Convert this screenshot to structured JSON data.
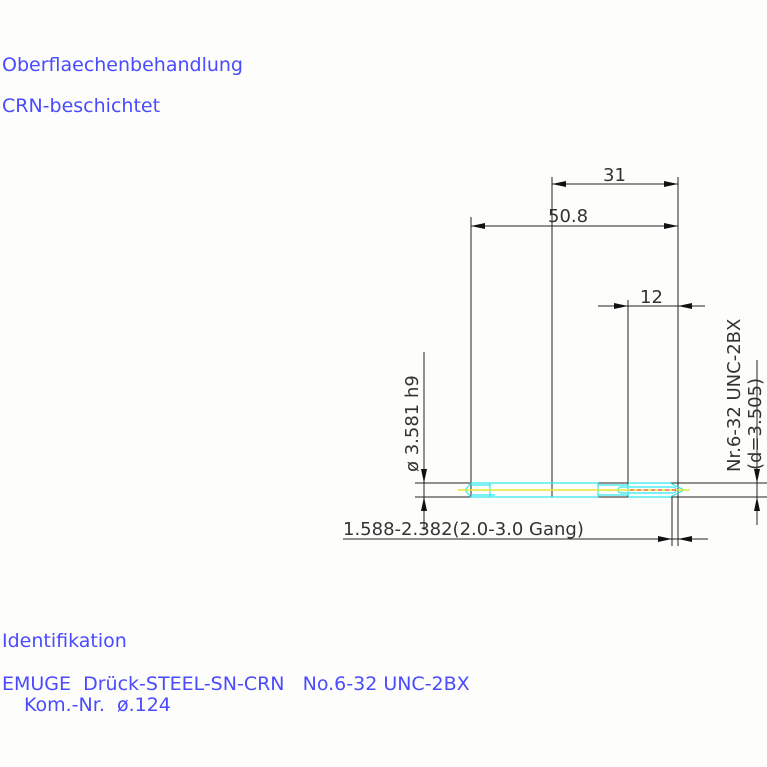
{
  "surface_treatment": {
    "heading": "Oberflaechenbehandlung",
    "value": "CRN-beschichtet"
  },
  "dimensions": {
    "length_neck": "31",
    "total_length": "50.8",
    "thread_length": "12",
    "shank_diameter": "ø 3.581 h9",
    "thread_designation": "Nr.6-32 UNC-2BX",
    "thread_diameter": "(d=3.505)",
    "chamfer": "1.588-2.382(2.0-3.0 Gang)"
  },
  "identification": {
    "heading": "Identifikation",
    "line1": "EMUGE  Drück-STEEL-SN-CRN   No.6-32 UNC-2BX",
    "line2": "Kom.-Nr.  ø.124"
  },
  "colors": {
    "text": "#4a4aff",
    "outline": "#33e8ee",
    "centerline": "#e8e830"
  }
}
